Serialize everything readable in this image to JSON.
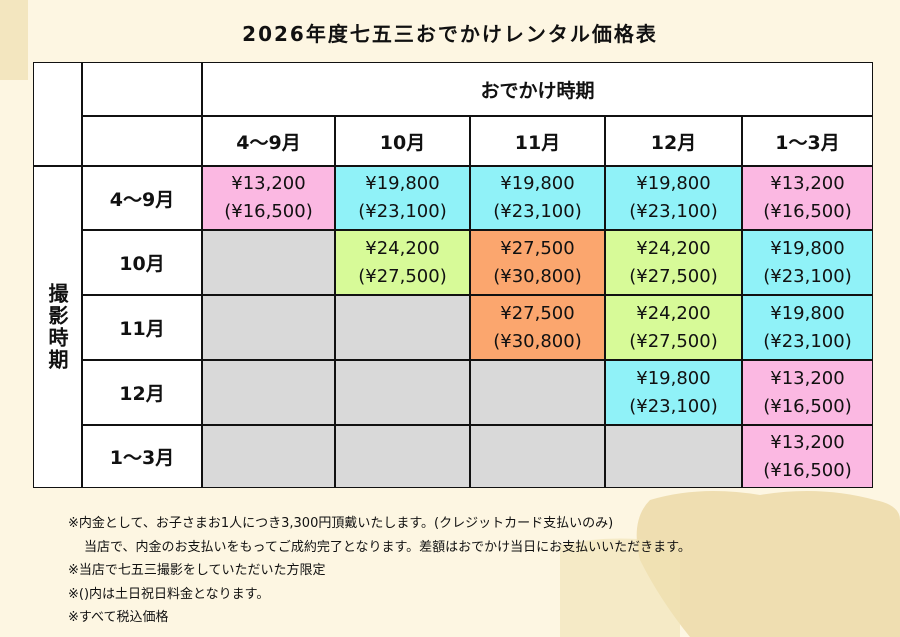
{
  "title": "2026年度七五三おでかけレンタル価格表",
  "table": {
    "outing_header": "おでかけ時期",
    "shooting_header": "撮影時期",
    "columns": [
      "4〜9月",
      "10月",
      "11月",
      "12月",
      "1〜3月"
    ],
    "rows": [
      {
        "label": "4〜9月",
        "cells": [
          {
            "price": "¥13,200",
            "weekend_price": "(¥16,500)",
            "color": "#fbb8e2"
          },
          {
            "price": "¥19,800",
            "weekend_price": "(¥23,100)",
            "color": "#90f2f8"
          },
          {
            "price": "¥19,800",
            "weekend_price": "(¥23,100)",
            "color": "#90f2f8"
          },
          {
            "price": "¥19,800",
            "weekend_price": "(¥23,100)",
            "color": "#90f2f8"
          },
          {
            "price": "¥13,200",
            "weekend_price": "(¥16,500)",
            "color": "#fbb8e2"
          }
        ]
      },
      {
        "label": "10月",
        "cells": [
          null,
          {
            "price": "¥24,200",
            "weekend_price": "(¥27,500)",
            "color": "#d7fa98"
          },
          {
            "price": "¥27,500",
            "weekend_price": "(¥30,800)",
            "color": "#fba66e"
          },
          {
            "price": "¥24,200",
            "weekend_price": "(¥27,500)",
            "color": "#d7fa98"
          },
          {
            "price": "¥19,800",
            "weekend_price": "(¥23,100)",
            "color": "#90f2f8"
          }
        ]
      },
      {
        "label": "11月",
        "cells": [
          null,
          null,
          {
            "price": "¥27,500",
            "weekend_price": "(¥30,800)",
            "color": "#fba66e"
          },
          {
            "price": "¥24,200",
            "weekend_price": "(¥27,500)",
            "color": "#d7fa98"
          },
          {
            "price": "¥19,800",
            "weekend_price": "(¥23,100)",
            "color": "#90f2f8"
          }
        ]
      },
      {
        "label": "12月",
        "cells": [
          null,
          null,
          null,
          {
            "price": "¥19,800",
            "weekend_price": "(¥23,100)",
            "color": "#90f2f8"
          },
          {
            "price": "¥13,200",
            "weekend_price": "(¥16,500)",
            "color": "#fbb8e2"
          }
        ]
      },
      {
        "label": "1〜3月",
        "cells": [
          null,
          null,
          null,
          null,
          {
            "price": "¥13,200",
            "weekend_price": "(¥16,500)",
            "color": "#fbb8e2"
          }
        ]
      }
    ]
  },
  "notes": [
    "※内金として、お子さまお1人につき3,300円頂戴いたします。(クレジットカード支払いのみ)",
    "当店で、内金のお支払いをもってご成約完了となります。差額はおでかけ当日にお支払いいただきます。",
    "※当店で七五三撮影をしていただいた方限定",
    "※()内は土日祝日料金となります。",
    "※すべて税込価格"
  ]
}
